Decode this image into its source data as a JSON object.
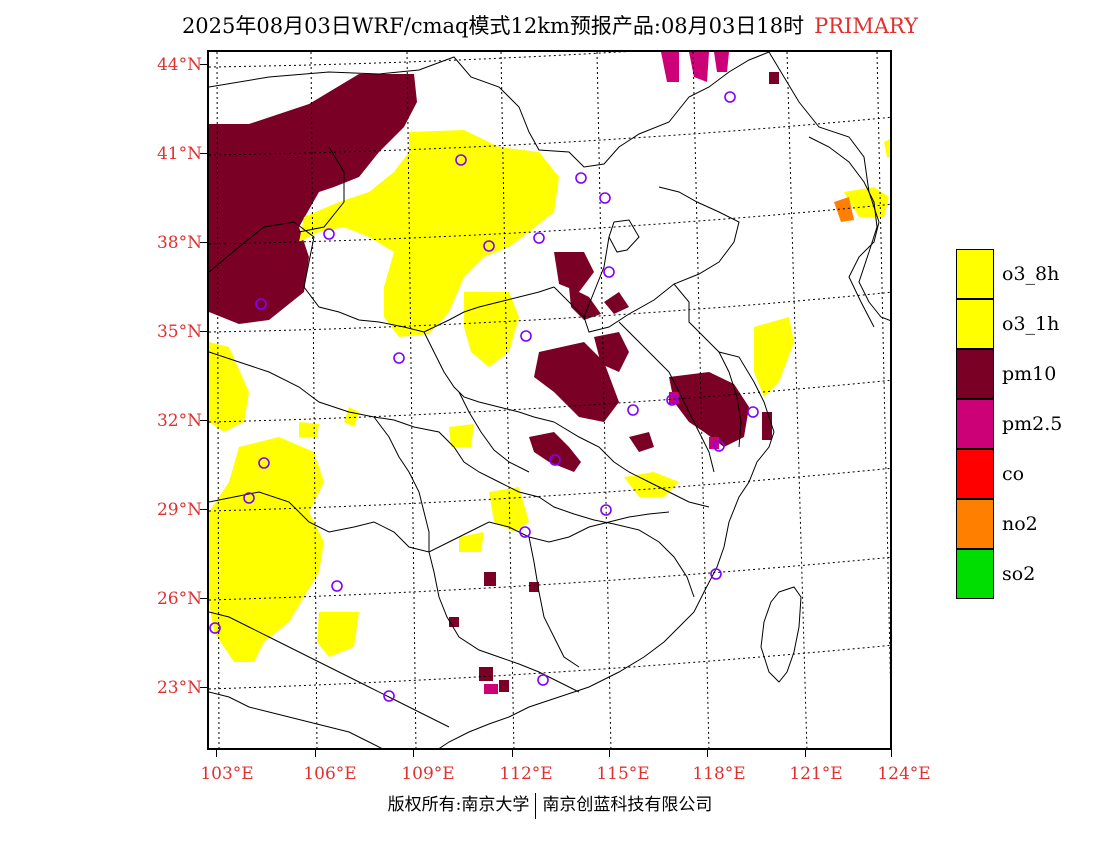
{
  "title": {
    "text": "2025年08月03日WRF/cmaq模式12km预报产品:08月03日18时",
    "tag": "PRIMARY"
  },
  "map": {
    "lat_labels": [
      "44°N",
      "41°N",
      "38°N",
      "35°N",
      "32°N",
      "29°N",
      "26°N",
      "23°N"
    ],
    "lon_labels": [
      "103°E",
      "106°E",
      "109°E",
      "112°E",
      "115°E",
      "118°E",
      "121°E",
      "124°E"
    ],
    "colors": {
      "o3": "#ffff00",
      "pm10": "#7a0026",
      "pm25": "#cc0077",
      "no2": "#ff7f00",
      "station": "#8000ff",
      "boundary": "#000000"
    }
  },
  "legend": [
    {
      "label": "o3_8h",
      "color": "#ffff00"
    },
    {
      "label": "o3_1h",
      "color": "#ffff00"
    },
    {
      "label": "pm10",
      "color": "#7a0026"
    },
    {
      "label": "pm2.5",
      "color": "#cc0077"
    },
    {
      "label": "co",
      "color": "#ff0000"
    },
    {
      "label": "no2",
      "color": "#ff7f00"
    },
    {
      "label": "so2",
      "color": "#00dd00"
    }
  ],
  "footer": {
    "left": "版权所有:南京大学",
    "right": "南京创蓝科技有限公司"
  }
}
